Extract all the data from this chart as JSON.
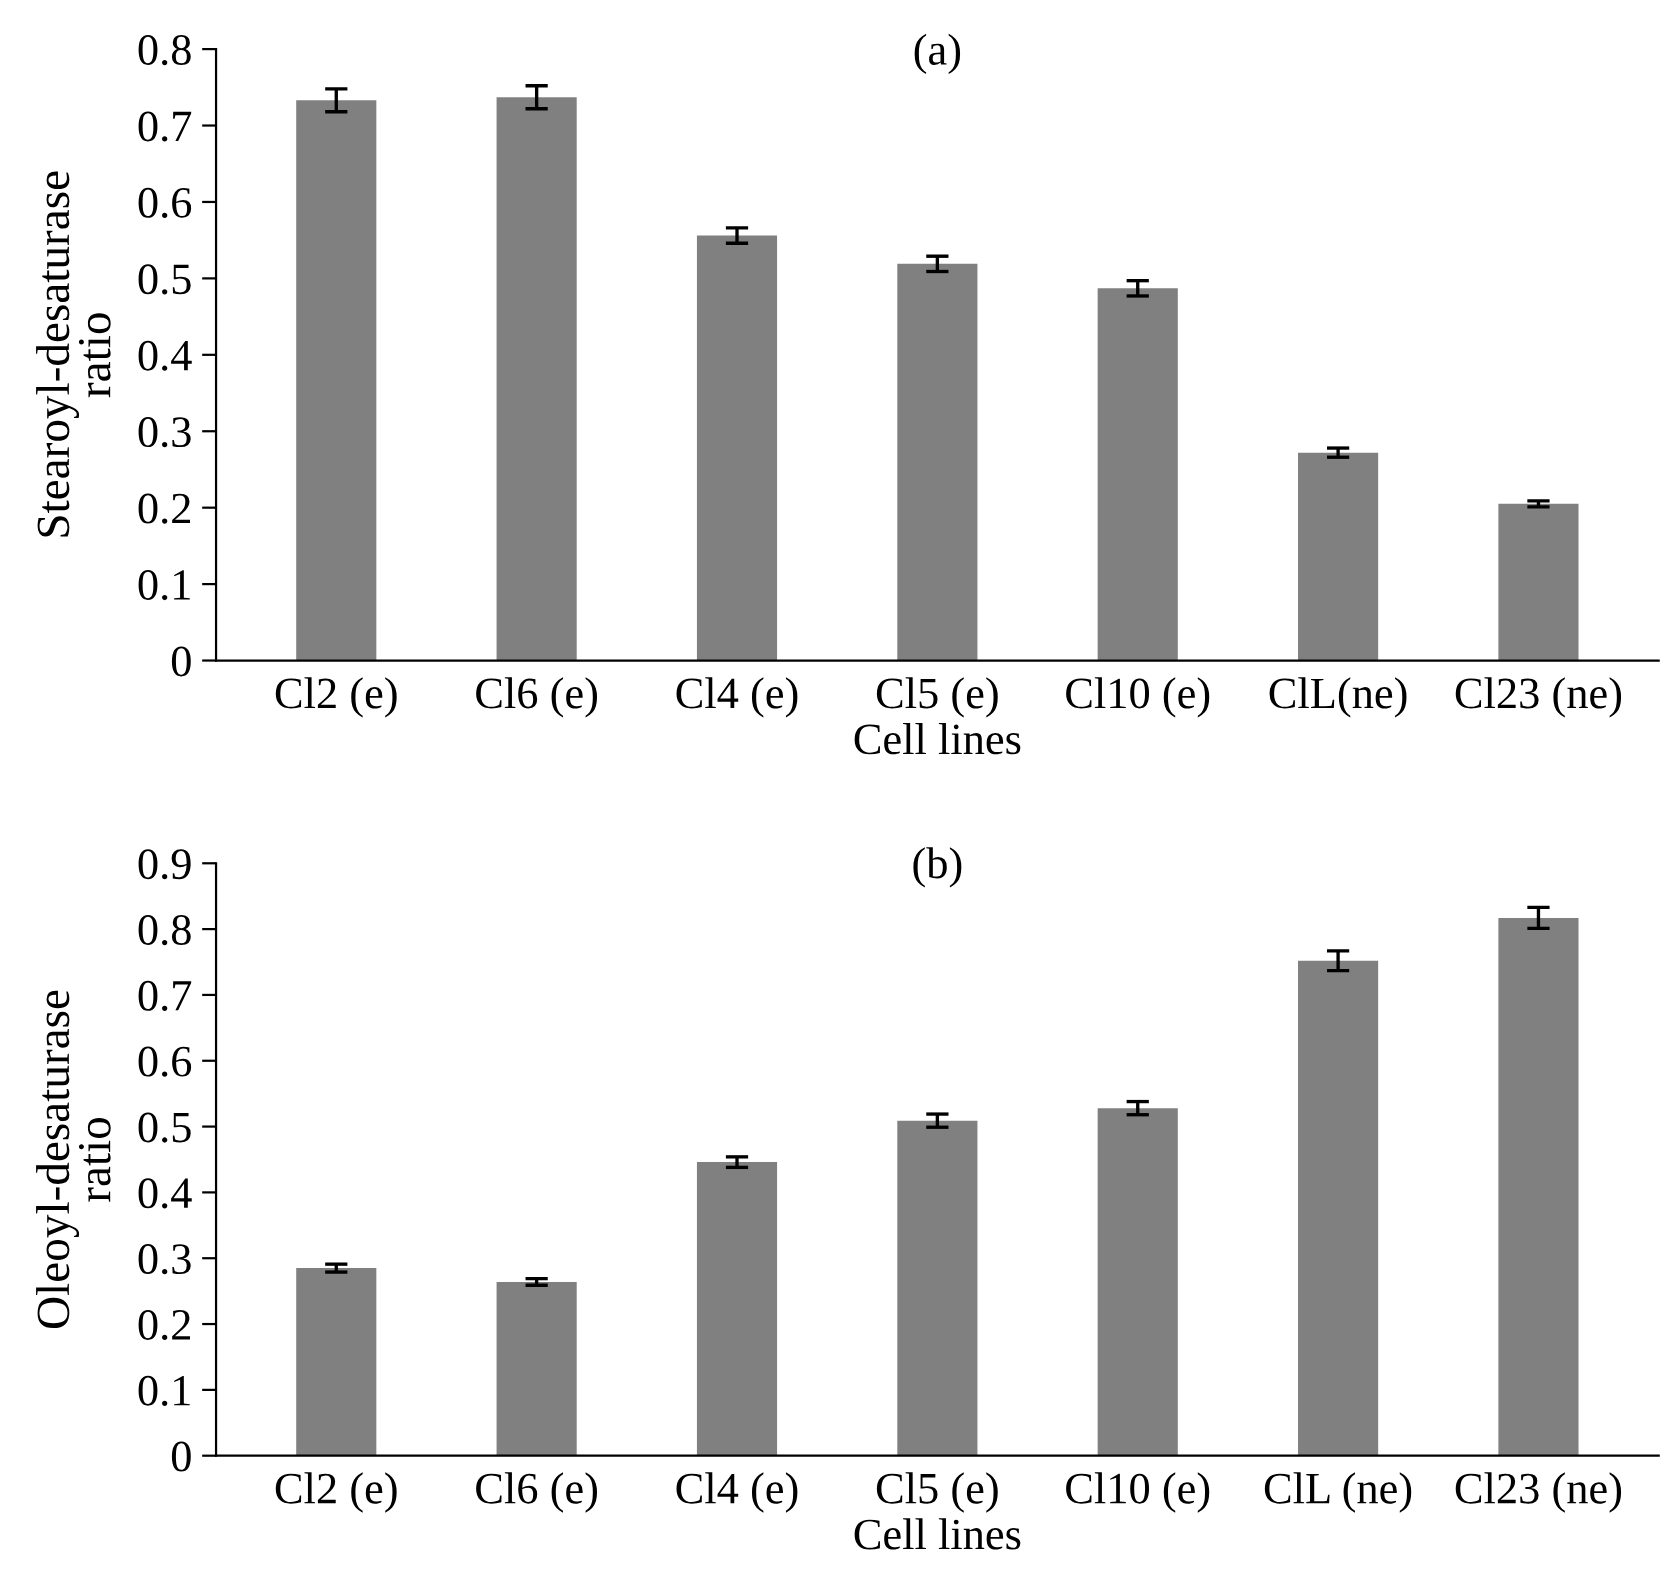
{
  "chart_data": [
    {
      "type": "bar",
      "title": "(a)",
      "xlabel": "Cell lines",
      "ylabel": "Stearoyl-desaturase\nratio",
      "categories": [
        "Cl2 (e)",
        "Cl6 (e)",
        "Cl4 (e)",
        "Cl5 (e)",
        "Cl10 (e)",
        "ClL(ne)",
        "Cl23 (ne)"
      ],
      "values": [
        0.733,
        0.737,
        0.556,
        0.519,
        0.487,
        0.272,
        0.205
      ],
      "errors": [
        0.015,
        0.015,
        0.01,
        0.01,
        0.01,
        0.006,
        0.004
      ],
      "color": "#808080",
      "ylim": [
        0,
        0.8
      ],
      "yticks": [
        0,
        0.1,
        0.2,
        0.3,
        0.4,
        0.5,
        0.6,
        0.7,
        0.8
      ],
      "grid": false
    },
    {
      "type": "bar",
      "title": "(b)",
      "xlabel": "Cell lines",
      "ylabel": "Oleoyl-desaturase\nratio",
      "categories": [
        "Cl2 (e)",
        "Cl6 (e)",
        "Cl4 (e)",
        "Cl5 (e)",
        "Cl10 (e)",
        "ClL (ne)",
        "Cl23 (ne)"
      ],
      "values": [
        0.285,
        0.264,
        0.446,
        0.509,
        0.528,
        0.752,
        0.817
      ],
      "errors": [
        0.006,
        0.005,
        0.008,
        0.01,
        0.01,
        0.015,
        0.016
      ],
      "color": "#808080",
      "ylim": [
        0,
        0.9
      ],
      "yticks": [
        0,
        0.1,
        0.2,
        0.3,
        0.4,
        0.5,
        0.6,
        0.7,
        0.8,
        0.9
      ],
      "grid": false
    }
  ]
}
